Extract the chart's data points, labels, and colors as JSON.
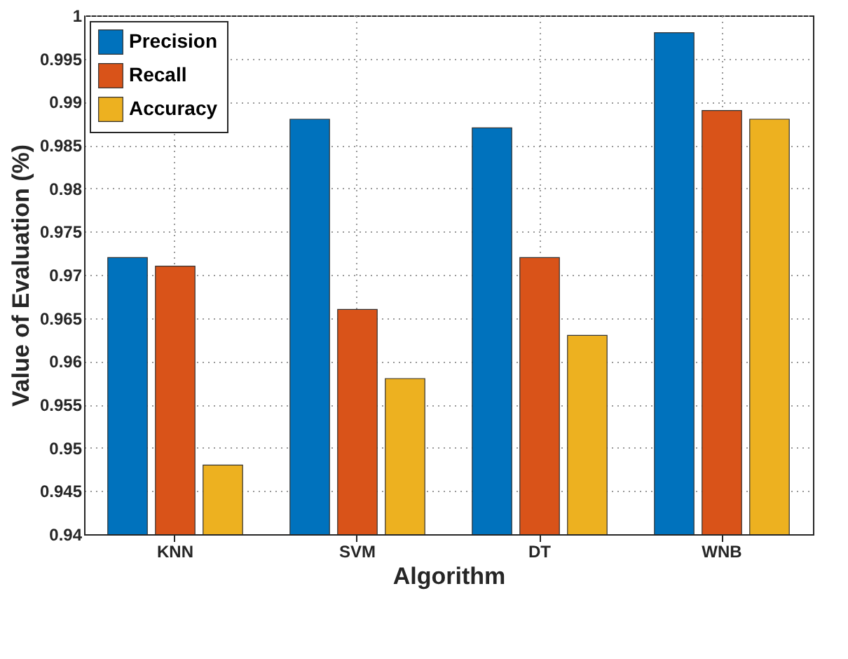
{
  "chart_data": {
    "type": "bar",
    "xlabel": "Algorithm",
    "ylabel": "Value of Evaluation (%)",
    "categories": [
      "KNN",
      "SVM",
      "DT",
      "WNB"
    ],
    "series": [
      {
        "name": "Precision",
        "color": "#0072bd",
        "values": [
          0.972,
          0.988,
          0.987,
          0.998
        ]
      },
      {
        "name": "Recall",
        "color": "#d95319",
        "values": [
          0.971,
          0.966,
          0.972,
          0.989
        ]
      },
      {
        "name": "Accuracy",
        "color": "#edb120",
        "values": [
          0.948,
          0.958,
          0.963,
          0.988
        ]
      }
    ],
    "ylim": [
      0.94,
      1
    ],
    "yticks": [
      0.94,
      0.945,
      0.95,
      0.955,
      0.96,
      0.965,
      0.97,
      0.975,
      0.98,
      0.985,
      0.99,
      0.995,
      1
    ],
    "grid": true,
    "legend": "top left"
  }
}
